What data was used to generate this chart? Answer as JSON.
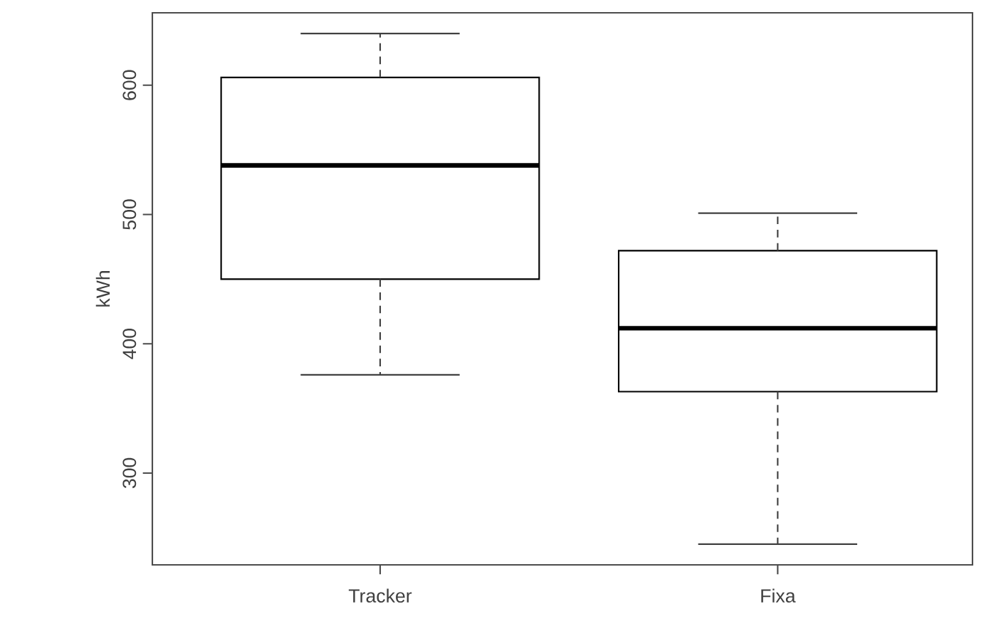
{
  "chart_data": {
    "type": "box",
    "ylabel": "kWh",
    "categories": [
      "Tracker",
      "Fixa"
    ],
    "boxes": [
      {
        "low": 376,
        "q1": 450,
        "median": 538,
        "q3": 606,
        "high": 640
      },
      {
        "low": 245,
        "q1": 363,
        "median": 412,
        "q3": 472,
        "high": 501
      }
    ],
    "ylim": [
      229,
      656
    ],
    "yticks": [
      300,
      400,
      500,
      600
    ]
  }
}
